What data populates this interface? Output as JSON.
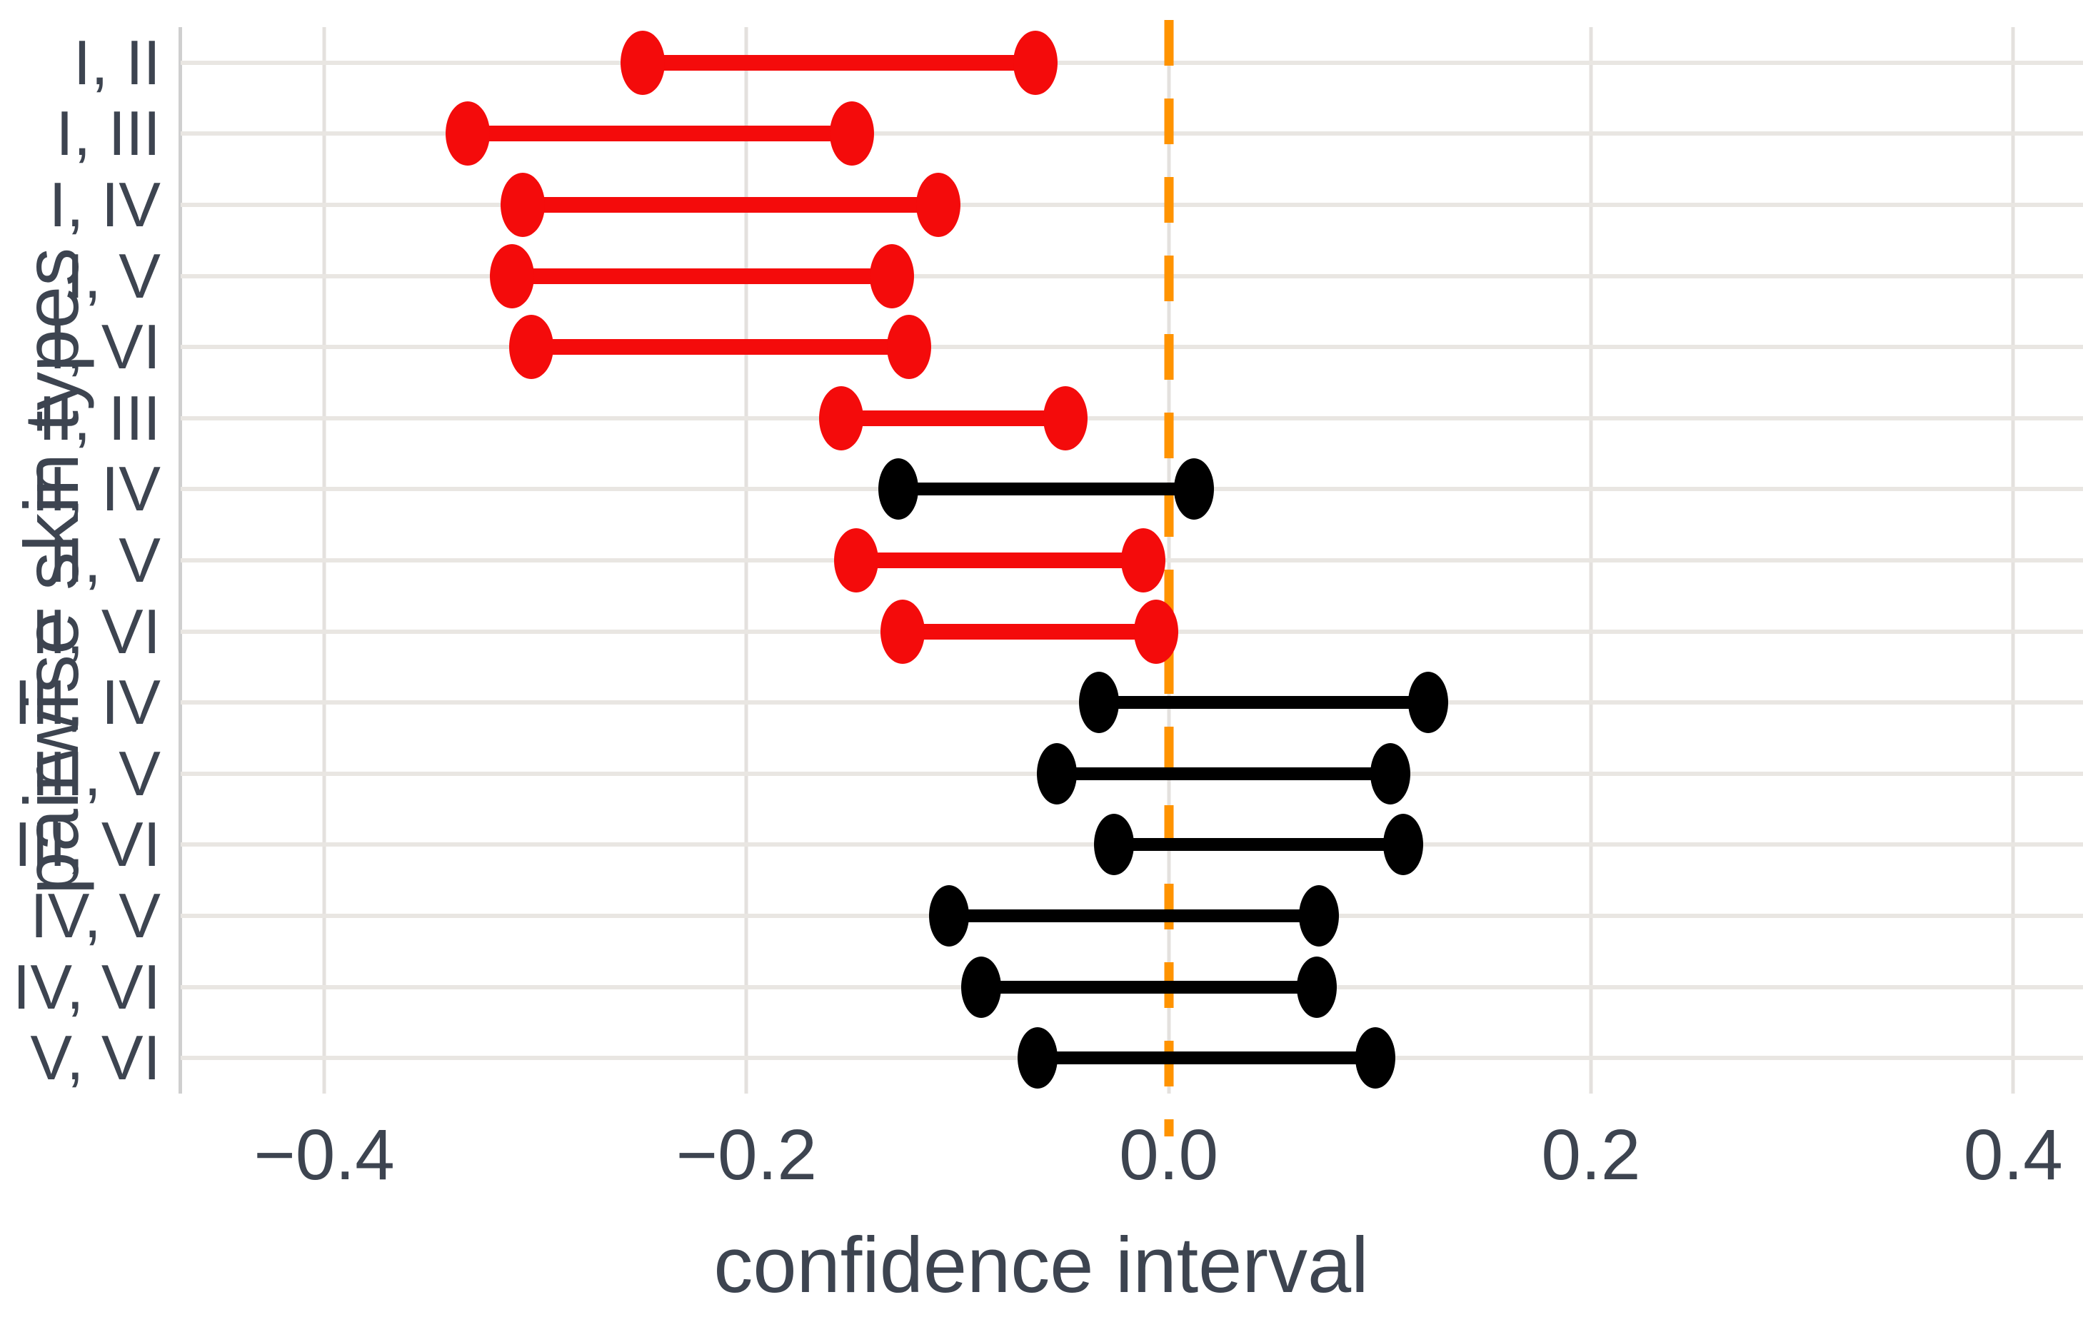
{
  "chart_data": {
    "type": "dumbbell_confidence_intervals",
    "title": "",
    "xlabel": "confidence interval",
    "ylabel": "pairwise skin types",
    "x_axis": {
      "min": -0.468,
      "max": 0.428,
      "ticks": [
        -0.4,
        -0.2,
        0.0,
        0.2,
        0.4
      ],
      "tick_labels": [
        "−0.4",
        "−0.2",
        "0.0",
        "0.2",
        "0.4"
      ],
      "grid": true
    },
    "y_axis": {
      "categories": [
        "I, II",
        "I, III",
        "I, IV",
        "I, V",
        "I, VI",
        "II, III",
        "II, IV",
        "II, V",
        "II, VI",
        "III, IV",
        "III, V",
        "III, VI",
        "IV, V",
        "IV, VI",
        "V, VI"
      ],
      "grid": true
    },
    "zero_line": {
      "x": 0.0,
      "style": "dashed",
      "color": "#ff9300"
    },
    "intervals": [
      {
        "pair": "I, II",
        "low": -0.249,
        "high": -0.063,
        "significant": true
      },
      {
        "pair": "I, III",
        "low": -0.332,
        "high": -0.15,
        "significant": true
      },
      {
        "pair": "I, IV",
        "low": -0.306,
        "high": -0.109,
        "significant": true
      },
      {
        "pair": "I, V",
        "low": -0.311,
        "high": -0.131,
        "significant": true
      },
      {
        "pair": "I, VI",
        "low": -0.302,
        "high": -0.123,
        "significant": true
      },
      {
        "pair": "II, III",
        "low": -0.155,
        "high": -0.049,
        "significant": true
      },
      {
        "pair": "II, IV",
        "low": -0.128,
        "high": 0.012,
        "significant": false
      },
      {
        "pair": "II, V",
        "low": -0.148,
        "high": -0.012,
        "significant": true
      },
      {
        "pair": "II, VI",
        "low": -0.126,
        "high": -0.006,
        "significant": true
      },
      {
        "pair": "III, IV",
        "low": -0.033,
        "high": 0.123,
        "significant": false
      },
      {
        "pair": "III, V",
        "low": -0.053,
        "high": 0.105,
        "significant": false
      },
      {
        "pair": "III, VI",
        "low": -0.026,
        "high": 0.111,
        "significant": false
      },
      {
        "pair": "IV, V",
        "low": -0.104,
        "high": 0.071,
        "significant": false
      },
      {
        "pair": "IV, VI",
        "low": -0.089,
        "high": 0.07,
        "significant": false
      },
      {
        "pair": "V, VI",
        "low": -0.062,
        "high": 0.098,
        "significant": false
      }
    ],
    "colors": {
      "significant": "#f40b0b",
      "nonsignificant": "#000000",
      "zero_line": "#ff9300",
      "text": "#3d4450",
      "grid": "#e9e6e2",
      "spine": "#cfcfcf",
      "background": "#ffffff"
    },
    "legend": "none"
  }
}
